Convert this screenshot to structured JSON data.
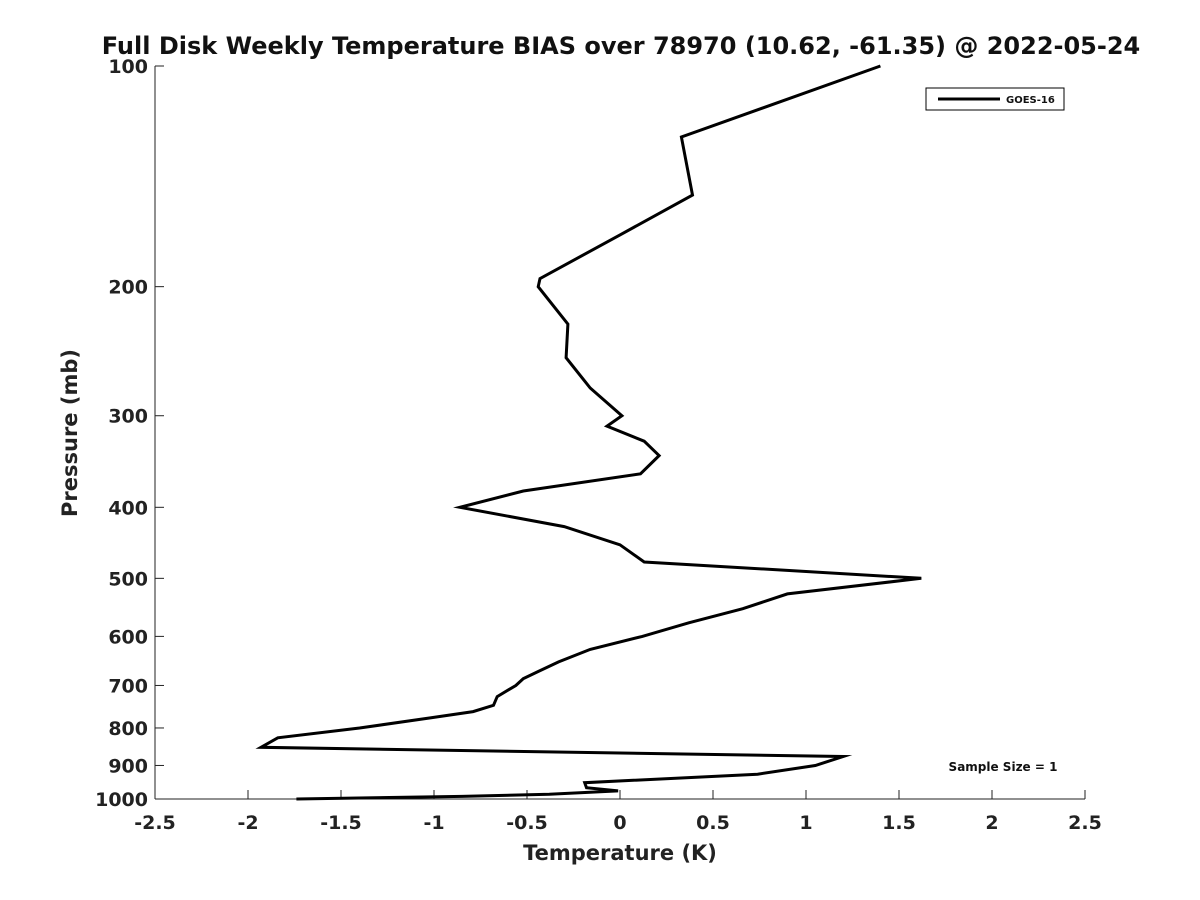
{
  "chart_data": {
    "type": "line",
    "title": "Full Disk Weekly Temperature BIAS over 78970 (10.62, -61.35) @ 2022-05-24",
    "xlabel": "Temperature (K)",
    "ylabel": "Pressure (mb)",
    "xlim": [
      -2.5,
      2.5
    ],
    "ylim": [
      1000,
      100
    ],
    "y_scale": "log",
    "grid": false,
    "x_ticks": [
      -2.5,
      -2,
      -1.5,
      -1,
      -0.5,
      0,
      0.5,
      1,
      1.5,
      2,
      2.5
    ],
    "x_tick_labels": [
      "-2.5",
      "-2",
      "-1.5",
      "-1",
      "-0.5",
      "0",
      "0.5",
      "1",
      "1.5",
      "2",
      "2.5"
    ],
    "y_ticks": [
      100,
      200,
      300,
      400,
      500,
      600,
      700,
      800,
      900,
      1000
    ],
    "y_tick_labels": [
      "100",
      "200",
      "300",
      "400",
      "500",
      "600",
      "700",
      "800",
      "900",
      "1000"
    ],
    "legend": {
      "position": "top-right",
      "entries": [
        "GOES-16"
      ]
    },
    "annotation": "Sample Size = 1",
    "series": [
      {
        "name": "GOES-16",
        "color": "#000000",
        "points": [
          {
            "x": 1.4,
            "p": 100
          },
          {
            "x": 0.33,
            "p": 125
          },
          {
            "x": 0.39,
            "p": 150
          },
          {
            "x": 0.0,
            "p": 170
          },
          {
            "x": -0.43,
            "p": 195
          },
          {
            "x": -0.44,
            "p": 200
          },
          {
            "x": -0.28,
            "p": 225
          },
          {
            "x": -0.29,
            "p": 250
          },
          {
            "x": -0.16,
            "p": 275
          },
          {
            "x": 0.01,
            "p": 300
          },
          {
            "x": -0.07,
            "p": 310
          },
          {
            "x": 0.13,
            "p": 325
          },
          {
            "x": 0.21,
            "p": 340
          },
          {
            "x": 0.11,
            "p": 360
          },
          {
            "x": -0.52,
            "p": 380
          },
          {
            "x": -0.86,
            "p": 400
          },
          {
            "x": -0.3,
            "p": 425
          },
          {
            "x": 0.0,
            "p": 450
          },
          {
            "x": 0.13,
            "p": 475
          },
          {
            "x": 1.62,
            "p": 500
          },
          {
            "x": 0.9,
            "p": 525
          },
          {
            "x": 0.66,
            "p": 550
          },
          {
            "x": 0.37,
            "p": 575
          },
          {
            "x": 0.12,
            "p": 600
          },
          {
            "x": -0.16,
            "p": 625
          },
          {
            "x": -0.33,
            "p": 650
          },
          {
            "x": -0.44,
            "p": 670
          },
          {
            "x": -0.52,
            "p": 685
          },
          {
            "x": -0.56,
            "p": 700
          },
          {
            "x": -0.66,
            "p": 725
          },
          {
            "x": -0.68,
            "p": 745
          },
          {
            "x": -0.79,
            "p": 760
          },
          {
            "x": -1.02,
            "p": 775
          },
          {
            "x": -1.4,
            "p": 800
          },
          {
            "x": -1.84,
            "p": 825
          },
          {
            "x": -1.93,
            "p": 850
          },
          {
            "x": 1.2,
            "p": 875
          },
          {
            "x": 1.05,
            "p": 900
          },
          {
            "x": 0.74,
            "p": 925
          },
          {
            "x": -0.19,
            "p": 950
          },
          {
            "x": -0.18,
            "p": 965
          },
          {
            "x": -0.01,
            "p": 975
          },
          {
            "x": -0.38,
            "p": 985
          },
          {
            "x": -0.85,
            "p": 992
          },
          {
            "x": -1.74,
            "p": 1000
          }
        ]
      }
    ]
  }
}
